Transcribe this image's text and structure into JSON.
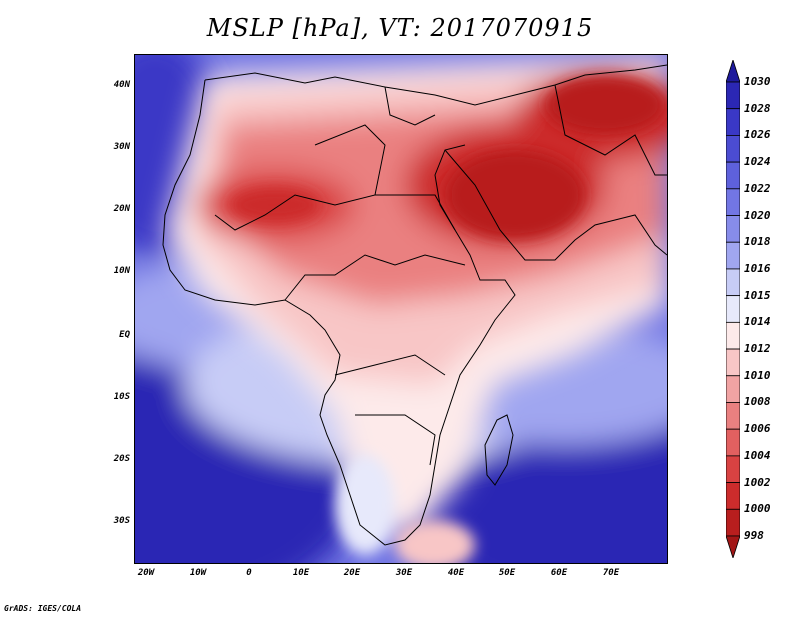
{
  "title": "MSLP [hPa], VT: 2017070915",
  "credit": "GrADS: IGES/COLA",
  "map": {
    "region": "Africa, Middle East and western Indian Ocean",
    "lat_labels": [
      "40N",
      "30N",
      "20N",
      "10N",
      "EQ",
      "10S",
      "20S",
      "30S"
    ],
    "lon_labels": [
      "20W",
      "10W",
      "0",
      "10E",
      "20E",
      "30E",
      "40E",
      "50E",
      "60E",
      "70E"
    ]
  },
  "colorbar": {
    "levels": [
      "1030",
      "1028",
      "1026",
      "1024",
      "1022",
      "1020",
      "1018",
      "1016",
      "1015",
      "1014",
      "1012",
      "1010",
      "1008",
      "1006",
      "1004",
      "1002",
      "1000",
      "998"
    ],
    "colors": [
      "#1e1a9c",
      "#2b27b4",
      "#3a38c6",
      "#4b4cd2",
      "#5e61dc",
      "#7276e4",
      "#878cea",
      "#a0a6f0",
      "#c7ccf6",
      "#e7e9fb",
      "#fdeaea",
      "#f8c6c6",
      "#f1a3a3",
      "#ea8080",
      "#e26060",
      "#d94242",
      "#cc2c2c",
      "#b81e1e",
      "#a21616"
    ]
  }
}
